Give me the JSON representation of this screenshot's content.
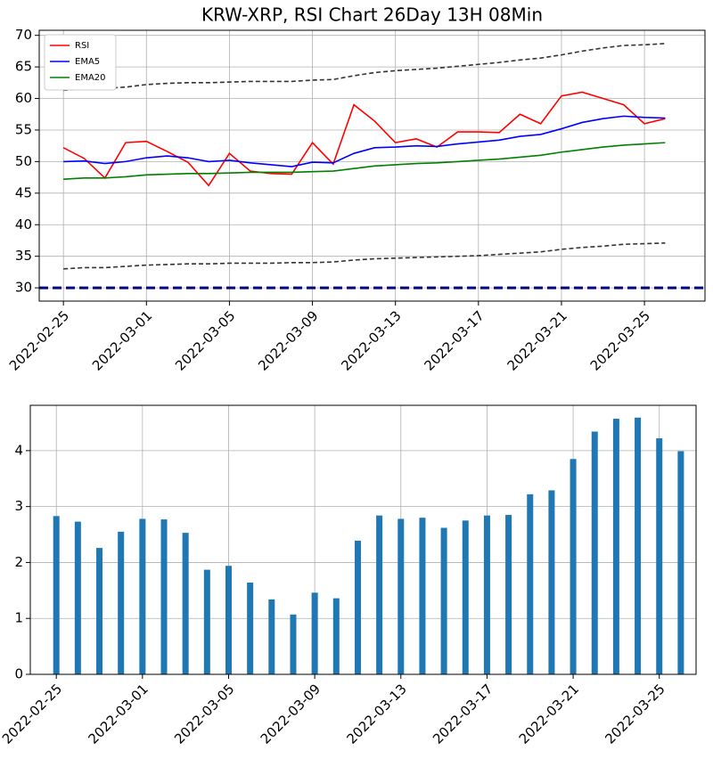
{
  "chart_data": [
    {
      "type": "line",
      "title": "KRW-XRP, RSI Chart 26Day 13H 08Min",
      "x": [
        "2022-02-25",
        "2022-02-26",
        "2022-02-27",
        "2022-02-28",
        "2022-03-01",
        "2022-03-02",
        "2022-03-03",
        "2022-03-04",
        "2022-03-05",
        "2022-03-06",
        "2022-03-07",
        "2022-03-08",
        "2022-03-09",
        "2022-03-10",
        "2022-03-11",
        "2022-03-12",
        "2022-03-13",
        "2022-03-14",
        "2022-03-15",
        "2022-03-16",
        "2022-03-17",
        "2022-03-18",
        "2022-03-19",
        "2022-03-20",
        "2022-03-21",
        "2022-03-22",
        "2022-03-23",
        "2022-03-24",
        "2022-03-25",
        "2022-03-26"
      ],
      "series": [
        {
          "name": "RSI",
          "color": "#ff0000",
          "values": [
            52.2,
            50.5,
            47.4,
            53.0,
            53.2,
            51.6,
            49.9,
            46.2,
            51.3,
            48.5,
            48.1,
            48.0,
            53.0,
            49.6,
            59.0,
            56.4,
            53.0,
            53.6,
            52.3,
            54.7,
            54.7,
            54.6,
            57.5,
            56.0,
            60.4,
            61.0,
            60.0,
            59.0,
            56.0,
            56.8
          ]
        },
        {
          "name": "EMA5",
          "color": "#0000ff",
          "values": [
            50.0,
            50.1,
            49.7,
            50.0,
            50.6,
            50.9,
            50.6,
            50.0,
            50.2,
            49.8,
            49.5,
            49.2,
            49.9,
            49.8,
            51.3,
            52.2,
            52.3,
            52.5,
            52.4,
            52.8,
            53.1,
            53.4,
            54.0,
            54.3,
            55.2,
            56.2,
            56.8,
            57.2,
            57.0,
            56.9
          ]
        },
        {
          "name": "EMA20",
          "color": "#008000",
          "values": [
            47.2,
            47.4,
            47.4,
            47.6,
            47.9,
            48.0,
            48.1,
            48.1,
            48.2,
            48.3,
            48.3,
            48.3,
            48.4,
            48.5,
            48.9,
            49.3,
            49.5,
            49.7,
            49.8,
            50.0,
            50.2,
            50.4,
            50.7,
            51.0,
            51.5,
            51.9,
            52.3,
            52.6,
            52.8,
            53.0
          ]
        },
        {
          "color": "#333333",
          "linestyle": "dashed",
          "values": [
            61.3,
            61.5,
            61.6,
            61.8,
            62.2,
            62.4,
            62.5,
            62.5,
            62.6,
            62.7,
            62.7,
            62.7,
            62.9,
            63.0,
            63.6,
            64.1,
            64.4,
            64.6,
            64.8,
            65.1,
            65.4,
            65.7,
            66.1,
            66.4,
            66.9,
            67.5,
            68.0,
            68.4,
            68.5,
            68.7
          ]
        },
        {
          "color": "#333333",
          "linestyle": "dashed",
          "values": [
            33.0,
            33.2,
            33.2,
            33.4,
            33.6,
            33.7,
            33.8,
            33.8,
            33.9,
            33.9,
            33.9,
            34.0,
            34.0,
            34.1,
            34.4,
            34.6,
            34.7,
            34.8,
            34.9,
            35.0,
            35.1,
            35.3,
            35.5,
            35.7,
            36.1,
            36.4,
            36.6,
            36.9,
            37.0,
            37.1
          ]
        }
      ],
      "hline": {
        "value": 30,
        "color": "#000080"
      },
      "xlim": [
        "2022-02-23T20:00",
        "2022-03-27T22:00"
      ],
      "xticks": [
        "2022-02-25",
        "2022-03-01",
        "2022-03-05",
        "2022-03-09",
        "2022-03-13",
        "2022-03-17",
        "2022-03-21",
        "2022-03-25"
      ],
      "ylim": [
        27.9,
        70.8
      ],
      "yticks": [
        30,
        35,
        40,
        45,
        50,
        55,
        60,
        65,
        70
      ],
      "grid": true,
      "legend": "upper left"
    },
    {
      "type": "bar",
      "x": [
        "2022-02-25",
        "2022-02-26",
        "2022-02-27",
        "2022-02-28",
        "2022-03-01",
        "2022-03-02",
        "2022-03-03",
        "2022-03-04",
        "2022-03-05",
        "2022-03-06",
        "2022-03-07",
        "2022-03-08",
        "2022-03-09",
        "2022-03-10",
        "2022-03-11",
        "2022-03-12",
        "2022-03-13",
        "2022-03-14",
        "2022-03-15",
        "2022-03-16",
        "2022-03-17",
        "2022-03-18",
        "2022-03-19",
        "2022-03-20",
        "2022-03-21",
        "2022-03-22",
        "2022-03-23",
        "2022-03-24",
        "2022-03-25",
        "2022-03-26"
      ],
      "values": [
        2.83,
        2.73,
        2.26,
        2.55,
        2.78,
        2.77,
        2.53,
        1.87,
        1.94,
        1.64,
        1.34,
        1.07,
        1.46,
        1.36,
        2.39,
        2.84,
        2.78,
        2.8,
        2.62,
        2.75,
        2.84,
        2.85,
        3.22,
        3.29,
        3.85,
        4.34,
        4.57,
        4.59,
        4.22,
        3.99
      ],
      "color": "#1f77b4",
      "xlim": [
        "2022-02-23T19:00",
        "2022-03-26T17:00"
      ],
      "xticks": [
        "2022-02-25",
        "2022-03-01",
        "2022-03-05",
        "2022-03-09",
        "2022-03-13",
        "2022-03-17",
        "2022-03-21",
        "2022-03-25"
      ],
      "ylim": [
        0,
        4.81
      ],
      "yticks": [
        0,
        1,
        2,
        3,
        4
      ],
      "grid": true
    }
  ]
}
